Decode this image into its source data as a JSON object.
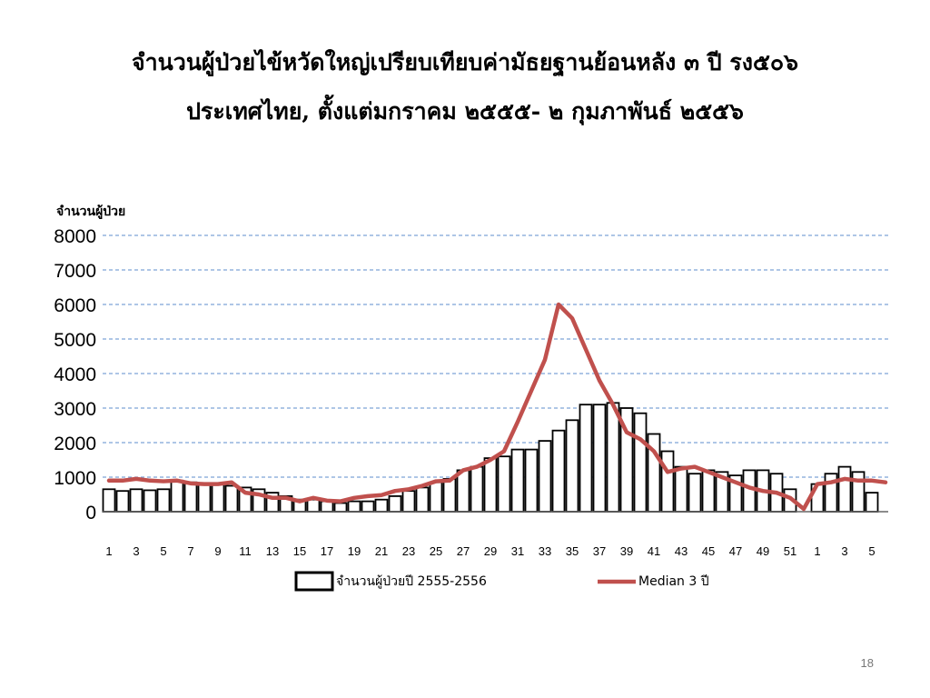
{
  "slide": {
    "title_line1": "จำนวนผู้ป่วยไข้หวัดใหญ่เปรียบเทียบค่ามัธยฐานย้อนหลัง ๓ ปี รง๕๐๖",
    "title_line2": "ประเทศไทย, ตั้งแต่มกราคม ๒๕๕๕- ๒ กุมภาพันธ์ ๒๕๕๖",
    "page_number": "18"
  },
  "chart_data": {
    "type": "bar",
    "ylabel": "จำนวนผู้ป่วย",
    "ylim": [
      0,
      8000
    ],
    "yticks": [
      0,
      1000,
      2000,
      3000,
      4000,
      5000,
      6000,
      7000,
      8000
    ],
    "grid": true,
    "legend_position": "bottom",
    "categories": [
      1,
      2,
      3,
      4,
      5,
      6,
      7,
      8,
      9,
      10,
      11,
      12,
      13,
      14,
      15,
      16,
      17,
      18,
      19,
      20,
      21,
      22,
      23,
      24,
      25,
      26,
      27,
      28,
      29,
      30,
      31,
      32,
      33,
      34,
      35,
      36,
      37,
      38,
      39,
      40,
      41,
      42,
      43,
      44,
      45,
      46,
      47,
      48,
      49,
      50,
      51,
      52,
      1,
      2,
      3,
      4,
      5,
      6
    ],
    "xtick_labels": [
      "1",
      "3",
      "5",
      "7",
      "9",
      "11",
      "13",
      "15",
      "17",
      "19",
      "21",
      "23",
      "25",
      "27",
      "29",
      "31",
      "33",
      "35",
      "37",
      "39",
      "41",
      "43",
      "45",
      "47",
      "49",
      "51",
      "1",
      "3",
      "5"
    ],
    "series": [
      {
        "name": "จำนวนผู้ป่วยปี 2555-2556",
        "type": "bar",
        "color": "#000000",
        "values": [
          650,
          600,
          650,
          620,
          650,
          900,
          850,
          800,
          800,
          750,
          700,
          650,
          550,
          450,
          350,
          350,
          300,
          250,
          300,
          300,
          350,
          450,
          600,
          700,
          850,
          950,
          1200,
          1300,
          1550,
          1600,
          1800,
          1800,
          2050,
          2350,
          2650,
          3100,
          3100,
          3150,
          3000,
          2850,
          2250,
          1750,
          1300,
          1100,
          1200,
          1150,
          1050,
          1200,
          1200,
          1100,
          650,
          0,
          800,
          1100,
          1300,
          1150,
          550,
          0
        ]
      },
      {
        "name": "Median 3 ปี",
        "type": "line",
        "color": "#c0504d",
        "values": [
          900,
          900,
          950,
          900,
          880,
          900,
          820,
          800,
          800,
          850,
          550,
          500,
          400,
          400,
          300,
          400,
          320,
          300,
          400,
          450,
          480,
          600,
          650,
          750,
          880,
          900,
          1200,
          1300,
          1500,
          1750,
          2600,
          3500,
          4400,
          6000,
          5600,
          4700,
          3800,
          3100,
          2300,
          2100,
          1750,
          1150,
          1250,
          1300,
          1150,
          1000,
          850,
          700,
          600,
          550,
          400,
          80,
          800,
          850,
          950,
          900,
          900,
          850
        ]
      }
    ]
  }
}
